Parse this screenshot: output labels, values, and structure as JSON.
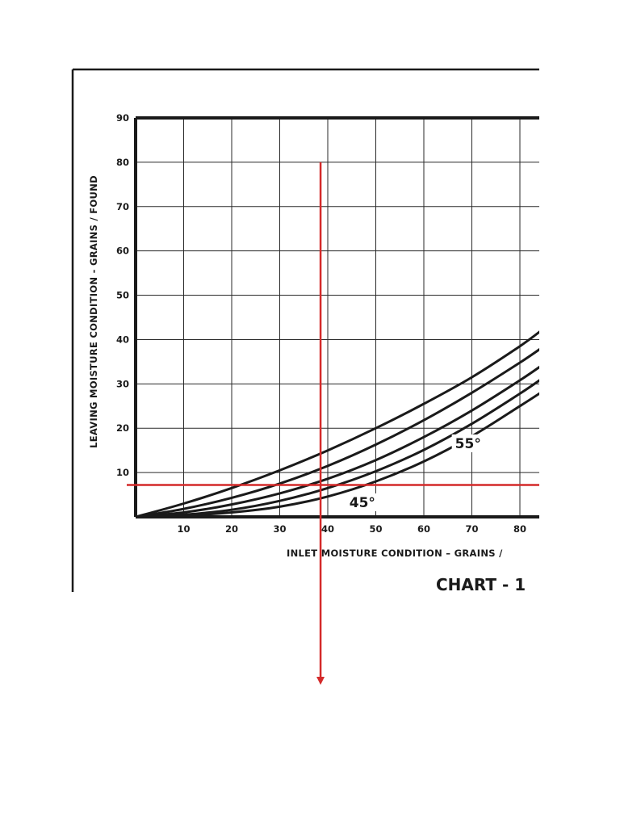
{
  "chart_title": "CHART - 1",
  "chart_data": {
    "type": "line",
    "title": "CHART - 1",
    "xlabel": "INLET MOISTURE CONDITION – GRAINS /",
    "ylabel": "LEAVING MOISTURE CONDITION - GRAINS / FOUND",
    "xlim": [
      0,
      85
    ],
    "ylim": [
      0,
      90
    ],
    "x_ticks": [
      10,
      20,
      30,
      40,
      50,
      60,
      70,
      80
    ],
    "y_ticks": [
      10,
      20,
      30,
      40,
      50,
      60,
      70,
      80,
      90
    ],
    "grid": true,
    "series": [
      {
        "x": [
          0,
          10,
          20,
          30,
          40,
          50,
          60,
          70,
          80,
          85
        ],
        "y": [
          0,
          3.0,
          6.5,
          10.5,
          15.0,
          20.0,
          25.5,
          31.5,
          38.5,
          42.5
        ]
      },
      {
        "x": [
          0,
          10,
          20,
          30,
          40,
          50,
          60,
          70,
          80,
          85
        ],
        "y": [
          0,
          1.8,
          4.3,
          7.5,
          11.5,
          16.3,
          21.8,
          28.0,
          34.8,
          38.5
        ]
      },
      {
        "x": [
          0,
          10,
          20,
          30,
          40,
          50,
          60,
          70,
          80,
          85
        ],
        "y": [
          0,
          1.0,
          2.8,
          5.3,
          8.6,
          12.8,
          18.0,
          24.0,
          30.8,
          34.5
        ]
      },
      {
        "x": [
          0,
          10,
          20,
          30,
          40,
          50,
          60,
          70,
          80,
          85
        ],
        "y": [
          0,
          0.5,
          1.6,
          3.6,
          6.5,
          10.3,
          15.1,
          21.0,
          27.8,
          31.5
        ]
      },
      {
        "x": [
          0,
          10,
          20,
          30,
          40,
          50,
          60,
          70,
          80,
          85
        ],
        "y": [
          0,
          0.3,
          1.0,
          2.3,
          4.6,
          8.0,
          12.5,
          18.2,
          25.0,
          28.5
        ]
      }
    ],
    "annotations": [
      {
        "text": "55°",
        "x": 66.5,
        "y": 15.5
      },
      {
        "text": "45°",
        "x": 44.5,
        "y": 2.2
      }
    ],
    "reference_lines": {
      "vertical_x": 38.5,
      "vertical_top_y": 80,
      "horizontal_y": 7.2,
      "color": "#d42a2a"
    }
  }
}
